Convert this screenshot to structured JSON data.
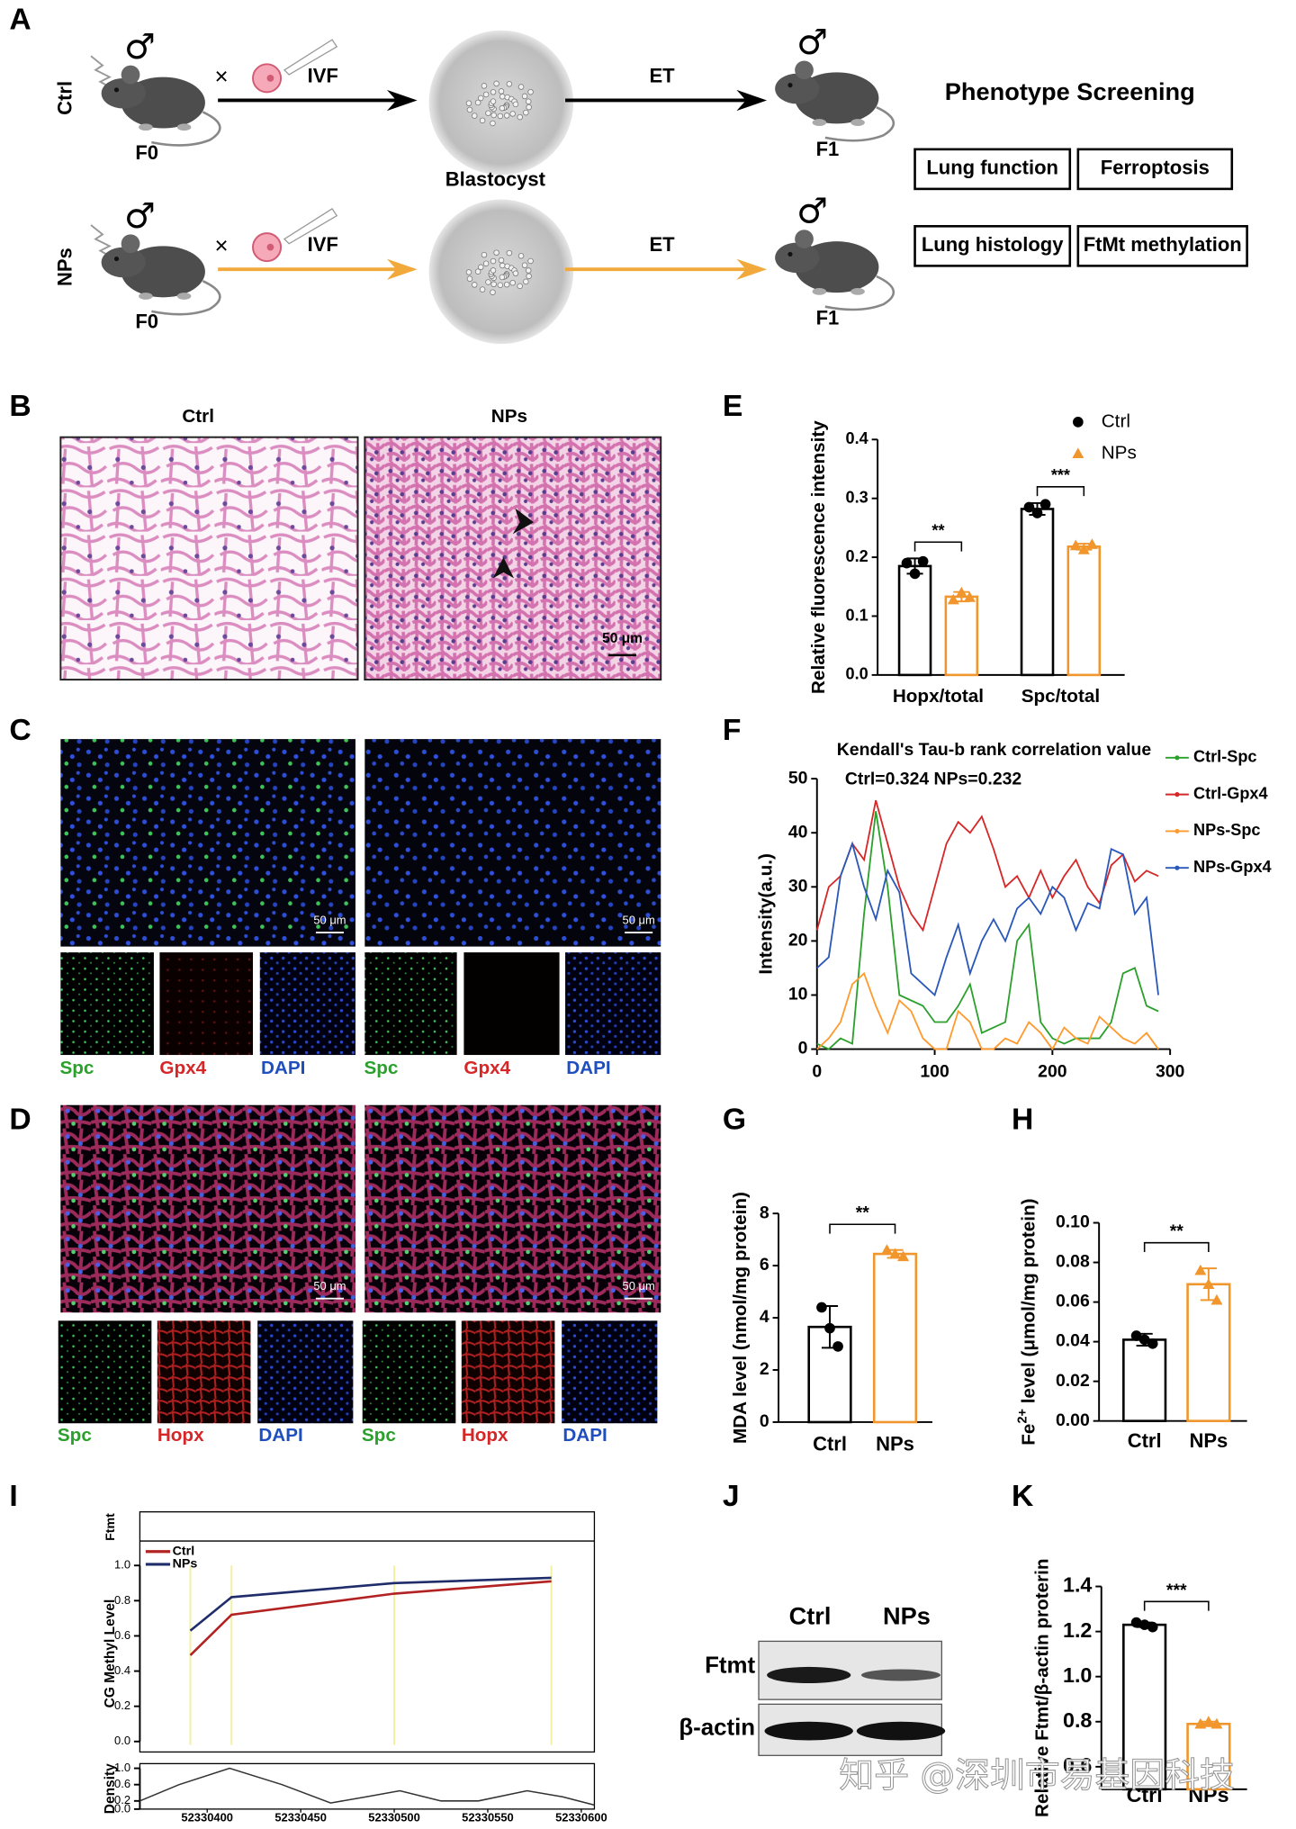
{
  "panel_labels": [
    "A",
    "B",
    "C",
    "D",
    "E",
    "F",
    "G",
    "H",
    "I",
    "J",
    "K"
  ],
  "diagram": {
    "rows": [
      {
        "group": "Ctrl",
        "male": "♂",
        "male_f1": "♂",
        "cross": "×",
        "ivf": "IVF",
        "et": "ET",
        "from": "F0",
        "to": "F1"
      },
      {
        "group": "NPs",
        "male": "♂",
        "male_f1": "♂",
        "cross": "×",
        "ivf": "IVF",
        "et": "ET",
        "from": "F0",
        "to": "F1"
      }
    ],
    "blastocyst": "Blastocyst",
    "screening": {
      "title": "Phenotype Screening",
      "items": [
        "Lung function",
        "Ferroptosis",
        "Lung histology",
        "FtMt methylation"
      ]
    }
  },
  "histology": {
    "groups": [
      "Ctrl",
      "NPs"
    ],
    "scale_bar": "50 μm"
  },
  "if_spc_gpx4": {
    "scale_bar": "50 μm",
    "channels": [
      "Spc",
      "Gpx4",
      "DAPI"
    ]
  },
  "if_spc_hopx": {
    "scale_bar": "50 μm",
    "channels": [
      "Spc",
      "Hopx",
      "DAPI"
    ]
  },
  "western_blot": {
    "groups": [
      "Ctrl",
      "NPs"
    ],
    "bands": [
      "Ftmt",
      "β-actin"
    ]
  },
  "watermark": "知乎 @深圳市易基因科技",
  "chart_data": [
    {
      "type": "bar",
      "ylabel": "Relative fluorescence intensity",
      "categories": [
        "Hopx/total",
        "Spc/total"
      ],
      "series": [
        {
          "name": "Ctrl",
          "color": "#000000",
          "marker": "circle",
          "values": [
            0.185,
            0.282
          ],
          "errors": [
            0.013,
            0.01
          ],
          "points": [
            [
              0.19,
              0.172,
              0.193
            ],
            [
              0.285,
              0.275,
              0.29
            ]
          ]
        },
        {
          "name": "NPs",
          "color": "#f0962c",
          "marker": "triangle",
          "values": [
            0.133,
            0.218
          ],
          "errors": [
            0.008,
            0.005
          ],
          "points": [
            [
              0.128,
              0.14,
              0.132
            ],
            [
              0.22,
              0.213,
              0.222
            ]
          ]
        }
      ],
      "ylim": [
        0,
        0.4
      ],
      "yticks": [
        {
          "value": 0,
          "label": "0.0"
        },
        0.1,
        0.2,
        0.3,
        0.4
      ],
      "significance": [
        "**",
        "***"
      ],
      "legend": "upper right"
    },
    {
      "type": "line",
      "title": "Kendall's Tau-b rank correlation value",
      "subtitle": "Ctrl=0.324  NPs=0.232",
      "ylabel": "Intensity(a.u.)",
      "x": [
        0,
        10,
        20,
        30,
        40,
        50,
        60,
        70,
        80,
        90,
        100,
        110,
        120,
        130,
        140,
        150,
        160,
        170,
        180,
        190,
        200,
        210,
        220,
        230,
        240,
        250,
        260,
        270,
        280,
        290
      ],
      "series": [
        {
          "name": "Ctrl-Spc",
          "color": "#2ca02c",
          "values": [
            1,
            0,
            2,
            1,
            25,
            44,
            30,
            10,
            9,
            8,
            5,
            5,
            8,
            12,
            3,
            4,
            5,
            20,
            23,
            5,
            2,
            1,
            2,
            2,
            2,
            5,
            14,
            15,
            8,
            7
          ]
        },
        {
          "name": "Ctrl-Gpx4",
          "color": "#d62728",
          "values": [
            22,
            30,
            32,
            38,
            35,
            46,
            38,
            30,
            25,
            22,
            30,
            38,
            42,
            40,
            43,
            37,
            30,
            32,
            28,
            33,
            28,
            32,
            35,
            30,
            27,
            34,
            36,
            31,
            33,
            32
          ]
        },
        {
          "name": "NPs-Spc",
          "color": "#ff9a2e",
          "values": [
            0,
            2,
            5,
            12,
            14,
            8,
            3,
            9,
            7,
            2,
            0,
            0,
            7,
            5,
            0,
            0,
            2,
            1,
            5,
            3,
            0,
            4,
            2,
            1,
            6,
            4,
            2,
            1,
            3,
            0
          ]
        },
        {
          "name": "NPs-Gpx4",
          "color": "#2a57b8",
          "values": [
            15,
            17,
            32,
            38,
            30,
            24,
            33,
            29,
            14,
            12,
            10,
            17,
            23,
            14,
            20,
            24,
            20,
            26,
            28,
            25,
            30,
            28,
            22,
            27,
            26,
            37,
            36,
            25,
            28,
            10
          ]
        }
      ],
      "xlim": [
        0,
        300
      ],
      "xticks": [
        0,
        100,
        200,
        300
      ],
      "ylim": [
        0,
        50
      ],
      "yticks": [
        0,
        10,
        20,
        30,
        40,
        50
      ],
      "legend": "right"
    },
    {
      "type": "bar",
      "ylabel": "MDA level (nmol/mg protein)",
      "categories": [
        "Ctrl",
        "NPs"
      ],
      "colors": [
        "#000000",
        "#f0962c"
      ],
      "markers": [
        "circle",
        "triangle"
      ],
      "values": [
        3.65,
        6.45
      ],
      "errors": [
        0.8,
        0.15
      ],
      "points": [
        [
          4.4,
          3.6,
          2.9
        ],
        [
          6.6,
          6.45,
          6.35
        ]
      ],
      "ylim": [
        0,
        8
      ],
      "yticks": [
        0,
        2,
        4,
        6,
        8
      ],
      "significance": [
        "**"
      ]
    },
    {
      "type": "bar",
      "ylabel": [
        "Fe",
        "2+",
        " level (μmol/mg protein)"
      ],
      "categories": [
        "Ctrl",
        "NPs"
      ],
      "colors": [
        "#000000",
        "#f0962c"
      ],
      "markers": [
        "circle",
        "triangle"
      ],
      "values": [
        0.041,
        0.069
      ],
      "errors": [
        0.003,
        0.008
      ],
      "points": [
        [
          0.043,
          0.041,
          0.039
        ],
        [
          0.076,
          0.069,
          0.061
        ]
      ],
      "ylim": [
        0,
        0.1
      ],
      "yticks": [
        {
          "value": 0,
          "label": "0.00"
        },
        0.02,
        0.04,
        0.06,
        0.08,
        {
          "value": 0.1,
          "label": "0.10"
        }
      ],
      "significance": [
        "**"
      ]
    },
    {
      "type": "line",
      "track_label": "Ftmt",
      "ylabel": "CG Methyl Level",
      "x": [
        52330391,
        52330413,
        52330500,
        52330584
      ],
      "series": [
        {
          "name": "Ctrl",
          "color": "#b22222",
          "values": [
            0.49,
            0.72,
            0.84,
            0.91
          ]
        },
        {
          "name": "NPs",
          "color": "#1f2d6b",
          "values": [
            0.63,
            0.82,
            0.9,
            0.93
          ]
        }
      ],
      "xlim": [
        52330364,
        52330607
      ],
      "ylim": [
        0,
        1
      ],
      "yticks": [
        {
          "value": 0,
          "label": "0.0"
        },
        0.2,
        0.4,
        0.6,
        0.8,
        {
          "value": 1,
          "label": "1.0"
        }
      ],
      "legend": "upper left"
    },
    {
      "type": "density",
      "ylabel": "Density",
      "x": [
        52330364,
        52330385,
        52330412,
        52330440,
        52330466,
        52330485,
        52330503,
        52330525,
        52330545,
        52330571,
        52330590,
        52330607
      ],
      "values": [
        0.2,
        0.6,
        1.0,
        0.6,
        0.15,
        0.3,
        0.45,
        0.2,
        0.2,
        0.45,
        0.3,
        0.1
      ],
      "color": "#333333",
      "xlim": [
        52330364,
        52330607
      ],
      "xticks": [
        52330400,
        52330450,
        52330500,
        52330550,
        52330600
      ],
      "ylim": [
        0,
        1
      ],
      "yticks": [
        {
          "value": 0,
          "label": "0.0"
        },
        0.2,
        0.6,
        {
          "value": 1,
          "label": "1.0"
        }
      ]
    },
    {
      "type": "bar",
      "ylabel": "Relative Ftmt/β-actin proterin",
      "categories": [
        "Ctrl",
        "NPs"
      ],
      "colors": [
        "#000000",
        "#f0962c"
      ],
      "markers": [
        "circle",
        "triangle"
      ],
      "values": [
        1.23,
        0.79
      ],
      "errors": [
        0.01,
        0.01
      ],
      "points": [
        [
          1.24,
          1.23,
          1.22
        ],
        [
          0.79,
          0.8,
          0.79
        ]
      ],
      "ylim": [
        0.5,
        1.4
      ],
      "yticks": [
        0.6,
        0.8,
        {
          "value": 1,
          "label": "1.0"
        },
        1.2,
        1.4
      ],
      "significance": [
        "***"
      ]
    }
  ]
}
